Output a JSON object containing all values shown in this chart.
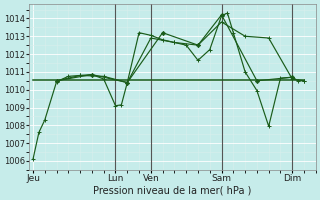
{
  "bg_color": "#c6ecea",
  "grid_color": "#b0ddd8",
  "line_color": "#1a5c1a",
  "xlabel": "Pression niveau de la mer( hPa )",
  "ylim": [
    1005.5,
    1014.8
  ],
  "yticks": [
    1006,
    1007,
    1008,
    1009,
    1010,
    1011,
    1012,
    1013,
    1014
  ],
  "xtick_labels": [
    "Jeu",
    "Lun",
    "Ven",
    "Sam",
    "Dim"
  ],
  "xtick_positions": [
    0,
    7,
    10,
    16,
    22
  ],
  "vlines": [
    7,
    10,
    16,
    22
  ],
  "xlim": [
    -0.3,
    24
  ],
  "series1_x": [
    0,
    0.5,
    1,
    2,
    3,
    4,
    5,
    6,
    7,
    7.5,
    8,
    9,
    10,
    11,
    12,
    13,
    14,
    15,
    16,
    16.5,
    17,
    18,
    19,
    20,
    21,
    22,
    22.5,
    23
  ],
  "series1_y": [
    1006.1,
    1007.6,
    1008.3,
    1010.45,
    1010.75,
    1010.8,
    1010.85,
    1010.6,
    1009.1,
    1009.15,
    1010.4,
    1013.2,
    1013.05,
    1012.8,
    1012.65,
    1012.5,
    1011.65,
    1012.25,
    1014.15,
    1014.3,
    1013.2,
    1011.0,
    1009.95,
    1007.95,
    1010.65,
    1010.7,
    1010.5,
    1010.5
  ],
  "series2_x": [
    2,
    5,
    8,
    11,
    14,
    16,
    19,
    22
  ],
  "series2_y": [
    1010.5,
    1010.85,
    1010.4,
    1013.2,
    1012.5,
    1014.2,
    1010.5,
    1010.7
  ],
  "series3_x": [
    2,
    4,
    6,
    8,
    10,
    12,
    14,
    16,
    18,
    20,
    22,
    23
  ],
  "series3_y": [
    1010.5,
    1010.8,
    1010.75,
    1010.4,
    1012.9,
    1012.65,
    1012.5,
    1013.8,
    1013.0,
    1012.9,
    1010.6,
    1010.5
  ],
  "flat_line_x": [
    0,
    23
  ],
  "flat_line_y": [
    1010.55,
    1010.55
  ]
}
